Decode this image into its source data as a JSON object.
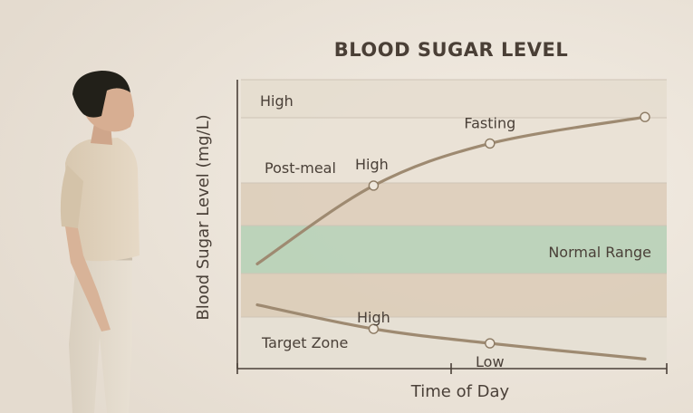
{
  "chart_data": {
    "type": "line",
    "title": "BLOOD SUGAR LEVEL",
    "xlabel": "Time of Day",
    "ylabel": "Blood Sugar Level (mg/L)",
    "bands": [
      {
        "label": "High",
        "color": "#e6ddd0"
      },
      {
        "label": "Post-meal",
        "color": "#e9e1d5"
      },
      {
        "label": "",
        "color": "#ddcfbc"
      },
      {
        "label": "Normal Range",
        "color": "#b9d2b8"
      },
      {
        "label": "",
        "color": "#dccdb9"
      },
      {
        "label": "Target Zone",
        "color": "#e6dfd4"
      }
    ],
    "series": [
      {
        "points": [
          {
            "x": 0.0,
            "y": 8.7
          },
          {
            "x": 0.3,
            "y": 15.2
          },
          {
            "x": 0.6,
            "y": 18.7
          },
          {
            "x": 1.0,
            "y": 20.9
          }
        ],
        "markers": [
          1,
          2,
          3
        ],
        "annotations": [
          {
            "index": 1,
            "text": "High"
          },
          {
            "index": 2,
            "text": "Fasting"
          }
        ],
        "color": "#9e8a71"
      },
      {
        "points": [
          {
            "x": 0.0,
            "y": 5.3
          },
          {
            "x": 0.3,
            "y": 3.3
          },
          {
            "x": 0.6,
            "y": 2.1
          },
          {
            "x": 1.0,
            "y": 0.8
          }
        ],
        "markers": [
          1,
          2
        ],
        "annotations": [
          {
            "index": 1,
            "text": "High"
          },
          {
            "index": 2,
            "text": "Low"
          }
        ],
        "color": "#9e8a71"
      }
    ]
  }
}
